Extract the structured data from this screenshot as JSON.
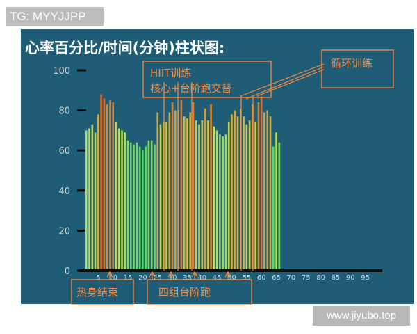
{
  "watermark_top": "TG: MYYJJPP",
  "watermark_bottom": "www.jiyubo.top",
  "colors": {
    "panel": "#1f5d76",
    "axis": "#0b0b0b",
    "tick_text": "#cfd8dc",
    "title": "#ffffff",
    "annotation": "#ff8a3d"
  },
  "chart_data": {
    "type": "bar",
    "title": "心率百分比/时间(分钟)柱状图:",
    "xlabel": "",
    "ylabel": "",
    "ylim": [
      0,
      100
    ],
    "xlim": [
      0,
      100
    ],
    "yticks": [
      0,
      20,
      40,
      60,
      80,
      100
    ],
    "xticks": [
      5,
      10,
      15,
      20,
      25,
      30,
      35,
      40,
      45,
      50,
      55,
      60,
      65,
      70,
      75,
      80,
      85,
      90,
      95
    ],
    "bar_color_scale": {
      "low_value": 60,
      "low_color": "#4cd662",
      "mid_value": 72,
      "mid_color": "#c9dc4c",
      "high_value": 87,
      "high_color": "#e06a2a"
    },
    "x": [
      1,
      2,
      3,
      4,
      5,
      6,
      7,
      8,
      9,
      10,
      11,
      12,
      13,
      14,
      15,
      16,
      17,
      18,
      19,
      20,
      21,
      22,
      23,
      24,
      25,
      26,
      27,
      28,
      29,
      30,
      31,
      32,
      33,
      34,
      35,
      36,
      37,
      38,
      39,
      40,
      41,
      42,
      43,
      44,
      45,
      46,
      47,
      48,
      49,
      50,
      51,
      52,
      53,
      54,
      55,
      56,
      57,
      58,
      59,
      60,
      61,
      62,
      63,
      64,
      65,
      66
    ],
    "values": [
      70,
      71,
      73,
      69,
      78,
      88,
      86,
      83,
      85,
      84,
      74,
      71,
      70,
      69,
      65,
      64,
      63,
      64,
      62,
      60,
      62,
      65,
      65,
      63,
      79,
      73,
      74,
      74,
      79,
      84,
      80,
      80,
      85,
      77,
      76,
      79,
      84,
      75,
      73,
      75,
      81,
      75,
      83,
      72,
      70,
      68,
      67,
      68,
      74,
      78,
      80,
      77,
      81,
      77,
      73,
      75,
      83,
      74,
      84,
      87,
      79,
      80,
      77,
      62,
      69,
      64
    ]
  },
  "annotations": [
    {
      "id": "hiit",
      "lines": [
        "HIIT训练",
        "核心+台阶跑交替"
      ]
    },
    {
      "id": "cycle",
      "lines": [
        "循环训练"
      ]
    },
    {
      "id": "warmup",
      "lines": [
        "热身结束"
      ]
    },
    {
      "id": "steps",
      "lines": [
        "四组台阶跑"
      ]
    }
  ]
}
